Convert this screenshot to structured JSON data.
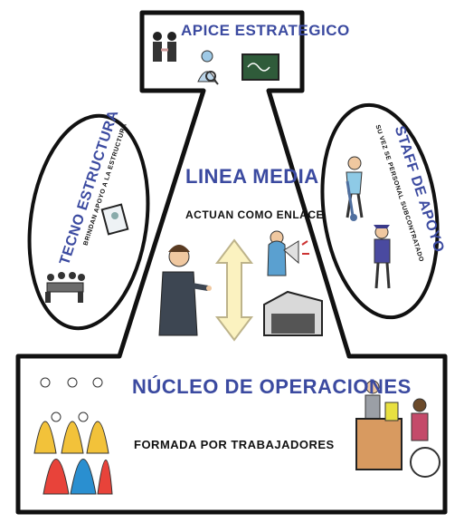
{
  "apex": {
    "title": "APICE ESTRATEGICO"
  },
  "middle_line": {
    "title": "LINEA MEDIA",
    "subtitle": "ACTUAN COMO ENLACE"
  },
  "technostructure": {
    "title": "TECNO ESTRUCTURA",
    "subtitle": "BRINDAN APOYO A LA ESTRUCTURA"
  },
  "support_staff": {
    "title": "STAFF DE APOYO",
    "subtitle": "SU VEZ SE PERSONAL SUBCONTRATADO"
  },
  "operating_core": {
    "title": "NÚCLEO DE OPERACIONES",
    "subtitle": "FORMADA POR TRABAJADORES"
  },
  "colors": {
    "label_blue": "#3b4aa0",
    "outline": "#111111",
    "arrow_fill": "#fbf2c0"
  }
}
